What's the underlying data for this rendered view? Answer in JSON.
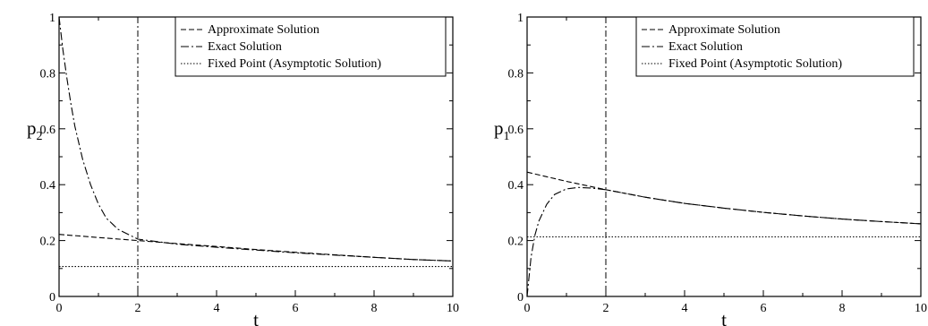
{
  "chart_data": [
    {
      "type": "line",
      "ylabel_main": "p",
      "ylabel_sub": "2",
      "xlabel": "t",
      "xlim": [
        0,
        10
      ],
      "ylim": [
        0,
        1
      ],
      "xticks": [
        "0",
        "2",
        "4",
        "6",
        "8",
        "10"
      ],
      "yticks": [
        "0",
        "0.2",
        "0.4",
        "0.6",
        "0.8",
        "1"
      ],
      "vline_x": 2,
      "legend_position": "top-right",
      "series": [
        {
          "name": "Approximate Solution",
          "style": "dashed",
          "x": [
            0,
            1,
            2,
            3,
            4,
            5,
            6,
            7,
            8,
            9,
            10
          ],
          "y": [
            0.222,
            0.211,
            0.2,
            0.189,
            0.179,
            0.168,
            0.158,
            0.149,
            0.14,
            0.132,
            0.127
          ]
        },
        {
          "name": "Exact Solution",
          "style": "dashdot",
          "x": [
            0,
            0.1,
            0.2,
            0.3,
            0.4,
            0.5,
            0.6,
            0.8,
            1.0,
            1.2,
            1.5,
            2.0,
            2.5,
            3,
            4,
            5,
            6,
            7,
            8,
            9,
            10
          ],
          "y": [
            1.0,
            0.88,
            0.78,
            0.69,
            0.61,
            0.55,
            0.49,
            0.4,
            0.33,
            0.28,
            0.24,
            0.205,
            0.196,
            0.187,
            0.176,
            0.166,
            0.156,
            0.148,
            0.14,
            0.132,
            0.127
          ]
        },
        {
          "name": "Fixed Point (Asymptotic Solution)",
          "style": "dotted",
          "x": [
            0,
            10
          ],
          "y": [
            0.107,
            0.107
          ]
        }
      ]
    },
    {
      "type": "line",
      "ylabel_main": "p",
      "ylabel_sub": "1",
      "xlabel": "t",
      "xlim": [
        0,
        10
      ],
      "ylim": [
        0,
        1
      ],
      "xticks": [
        "0",
        "2",
        "4",
        "6",
        "8",
        "10"
      ],
      "yticks": [
        "0",
        "0.2",
        "0.4",
        "0.6",
        "0.8",
        "1"
      ],
      "vline_x": 2,
      "legend_position": "top-right",
      "series": [
        {
          "name": "Approximate Solution",
          "style": "dashed",
          "x": [
            0,
            1,
            2,
            3,
            4,
            5,
            6,
            7,
            8,
            9,
            10
          ],
          "y": [
            0.445,
            0.412,
            0.382,
            0.355,
            0.333,
            0.316,
            0.301,
            0.288,
            0.277,
            0.268,
            0.26
          ]
        },
        {
          "name": "Exact Solution",
          "style": "dashdot",
          "x": [
            0,
            0.1,
            0.2,
            0.3,
            0.5,
            0.7,
            1.0,
            1.3,
            1.6,
            2.0,
            3,
            4,
            5,
            6,
            7,
            8,
            9,
            10
          ],
          "y": [
            0.0,
            0.14,
            0.22,
            0.27,
            0.33,
            0.365,
            0.385,
            0.39,
            0.388,
            0.382,
            0.355,
            0.333,
            0.316,
            0.301,
            0.288,
            0.277,
            0.268,
            0.26
          ]
        },
        {
          "name": "Fixed Point (Asymptotic Solution)",
          "style": "dotted",
          "x": [
            0,
            10
          ],
          "y": [
            0.213,
            0.213
          ]
        }
      ]
    }
  ]
}
